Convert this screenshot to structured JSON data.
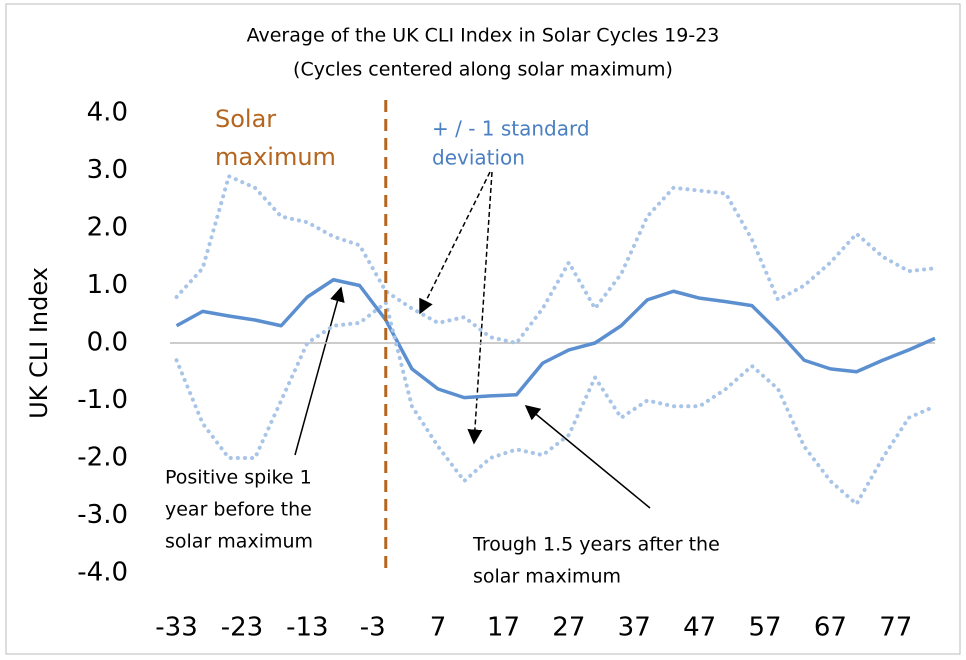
{
  "chart_data": {
    "type": "line",
    "title": "Average of the UK CLI Index in Solar Cycles 19-23",
    "subtitle": "(Cycles centered along solar maximum)",
    "y_label": "UK CLI Index",
    "x": [
      -33,
      -29,
      -25,
      -21,
      -17,
      -13,
      -9,
      -5,
      -1,
      3,
      7,
      11,
      15,
      19,
      23,
      27,
      31,
      35,
      39,
      43,
      47,
      51,
      55,
      59,
      63,
      67,
      71,
      75,
      79,
      83
    ],
    "series": [
      {
        "name": "Average",
        "color": "#5b8fd0",
        "style": "solid",
        "values": [
          0.3,
          0.55,
          0.47,
          0.4,
          0.3,
          0.8,
          1.1,
          1.0,
          0.4,
          -0.45,
          -0.8,
          -0.95,
          -0.92,
          -0.9,
          -0.35,
          -0.12,
          0.0,
          0.3,
          0.75,
          0.9,
          0.78,
          0.72,
          0.65,
          0.2,
          -0.3,
          -0.45,
          -0.5,
          -0.3,
          -0.12,
          0.08
        ]
      },
      {
        "name": "+1 standard deviation",
        "color": "#a8c4e6",
        "style": "dotted",
        "values": [
          0.8,
          1.3,
          2.9,
          2.7,
          2.2,
          2.1,
          1.85,
          1.7,
          0.9,
          0.6,
          0.35,
          0.45,
          0.1,
          0.0,
          0.6,
          1.4,
          0.6,
          1.2,
          2.2,
          2.7,
          2.65,
          2.6,
          1.8,
          0.75,
          1.0,
          1.4,
          1.9,
          1.5,
          1.25,
          1.3
        ]
      },
      {
        "name": "-1 standard deviation",
        "color": "#a8c4e6",
        "style": "dotted",
        "values": [
          -0.3,
          -1.4,
          -2.0,
          -2.0,
          -1.0,
          0.0,
          0.3,
          0.35,
          0.7,
          -1.1,
          -1.8,
          -2.4,
          -2.0,
          -1.85,
          -1.95,
          -1.6,
          -0.6,
          -1.3,
          -1.0,
          -1.1,
          -1.1,
          -0.8,
          -0.4,
          -0.8,
          -1.8,
          -2.4,
          -2.8,
          -2.0,
          -1.3,
          -1.1
        ]
      }
    ],
    "xlim": [
      -34,
      83
    ],
    "ylim": [
      -4,
      4
    ],
    "xticks": [
      -33,
      -23,
      -13,
      -3,
      7,
      17,
      27,
      37,
      47,
      57,
      67,
      77
    ],
    "yticks": [
      {
        "value": 4,
        "label": "4.0"
      },
      {
        "value": 3,
        "label": "3.0"
      },
      {
        "value": 2,
        "label": "2.0"
      },
      {
        "value": 1,
        "label": "1.0"
      },
      {
        "value": 0,
        "label": "0.0"
      },
      {
        "value": -1,
        "label": "-1.0"
      },
      {
        "value": -2,
        "label": "-2.0"
      },
      {
        "value": -3,
        "label": "-3.0"
      },
      {
        "value": -4,
        "label": "-4.0"
      }
    ],
    "vline": {
      "x": -1,
      "color": "#b5651d",
      "label": [
        "Solar",
        "maximum"
      ]
    },
    "annotations": [
      {
        "text": [
          "+ / - 1  standard",
          "deviation"
        ],
        "color": "#4a7fc1"
      },
      {
        "text": [
          "Positive spike 1",
          "year before the",
          "solar maximum"
        ],
        "color": "#000000"
      },
      {
        "text": [
          "Trough 1.5 years after the",
          "solar maximum"
        ],
        "color": "#000000"
      }
    ]
  }
}
